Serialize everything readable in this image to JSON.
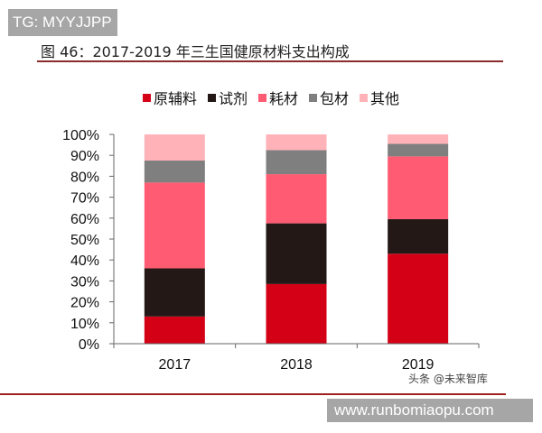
{
  "watermark_top": "TG: MYYJJPP",
  "watermark_bottom": "www.runbomiaopu.com",
  "source_mark": "头条 @未来智库",
  "chart_data": {
    "type": "bar",
    "stacked": true,
    "title": "图 46：2017-2019 年三生国健原材料支出构成",
    "categories": [
      "2017",
      "2018",
      "2019"
    ],
    "series": [
      {
        "name": "原辅料",
        "color": "#d40016",
        "values": [
          13,
          28.5,
          43
        ]
      },
      {
        "name": "试剂",
        "color": "#231816",
        "values": [
          23,
          29,
          16.5
        ]
      },
      {
        "name": "耗材",
        "color": "#ff5b72",
        "values": [
          41,
          23.5,
          30
        ]
      },
      {
        "name": "包材",
        "color": "#7f7f7f",
        "values": [
          10.5,
          11.5,
          6
        ]
      },
      {
        "name": "其他",
        "color": "#ffb3b8",
        "values": [
          12.5,
          7.5,
          4.5
        ]
      }
    ],
    "ylim": [
      0,
      100
    ],
    "yticks": [
      "0%",
      "10%",
      "20%",
      "30%",
      "40%",
      "50%",
      "60%",
      "70%",
      "80%",
      "90%",
      "100%"
    ],
    "legend": "top",
    "grid": false,
    "xlabel": "",
    "ylabel": ""
  }
}
